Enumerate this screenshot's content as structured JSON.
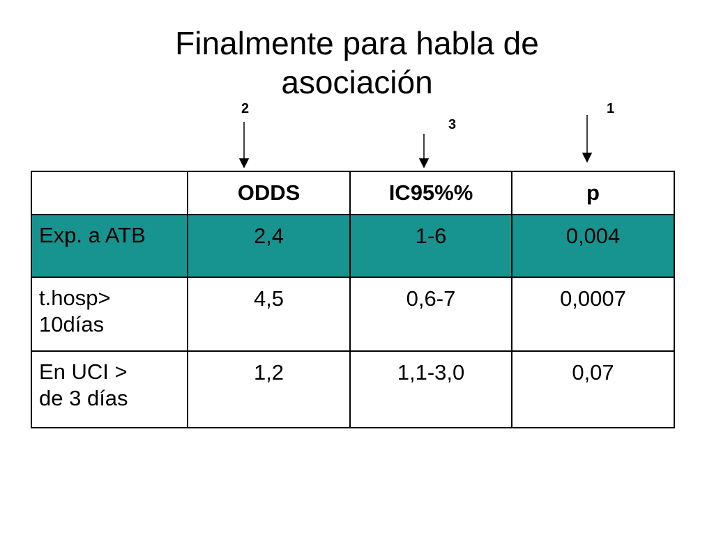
{
  "title_lines": [
    "Finalmente para habla de",
    "asociación"
  ],
  "annotations": [
    "2",
    "3",
    "1"
  ],
  "table": {
    "header": [
      "ODDS",
      "IC95%%",
      "p"
    ],
    "rows": [
      {
        "label_lines": [
          "Exp. a ATB"
        ],
        "cells": [
          "2,4",
          "1-6",
          "0,004"
        ]
      },
      {
        "label_lines": [
          "t.hosp>",
          "10días"
        ],
        "cells": [
          "4,5",
          "0,6-7",
          "0,0007"
        ]
      },
      {
        "label_lines": [
          "En UCI >",
          "de 3 días"
        ],
        "cells": [
          "1,2",
          "1,1-3,0",
          "0,07"
        ]
      }
    ]
  }
}
